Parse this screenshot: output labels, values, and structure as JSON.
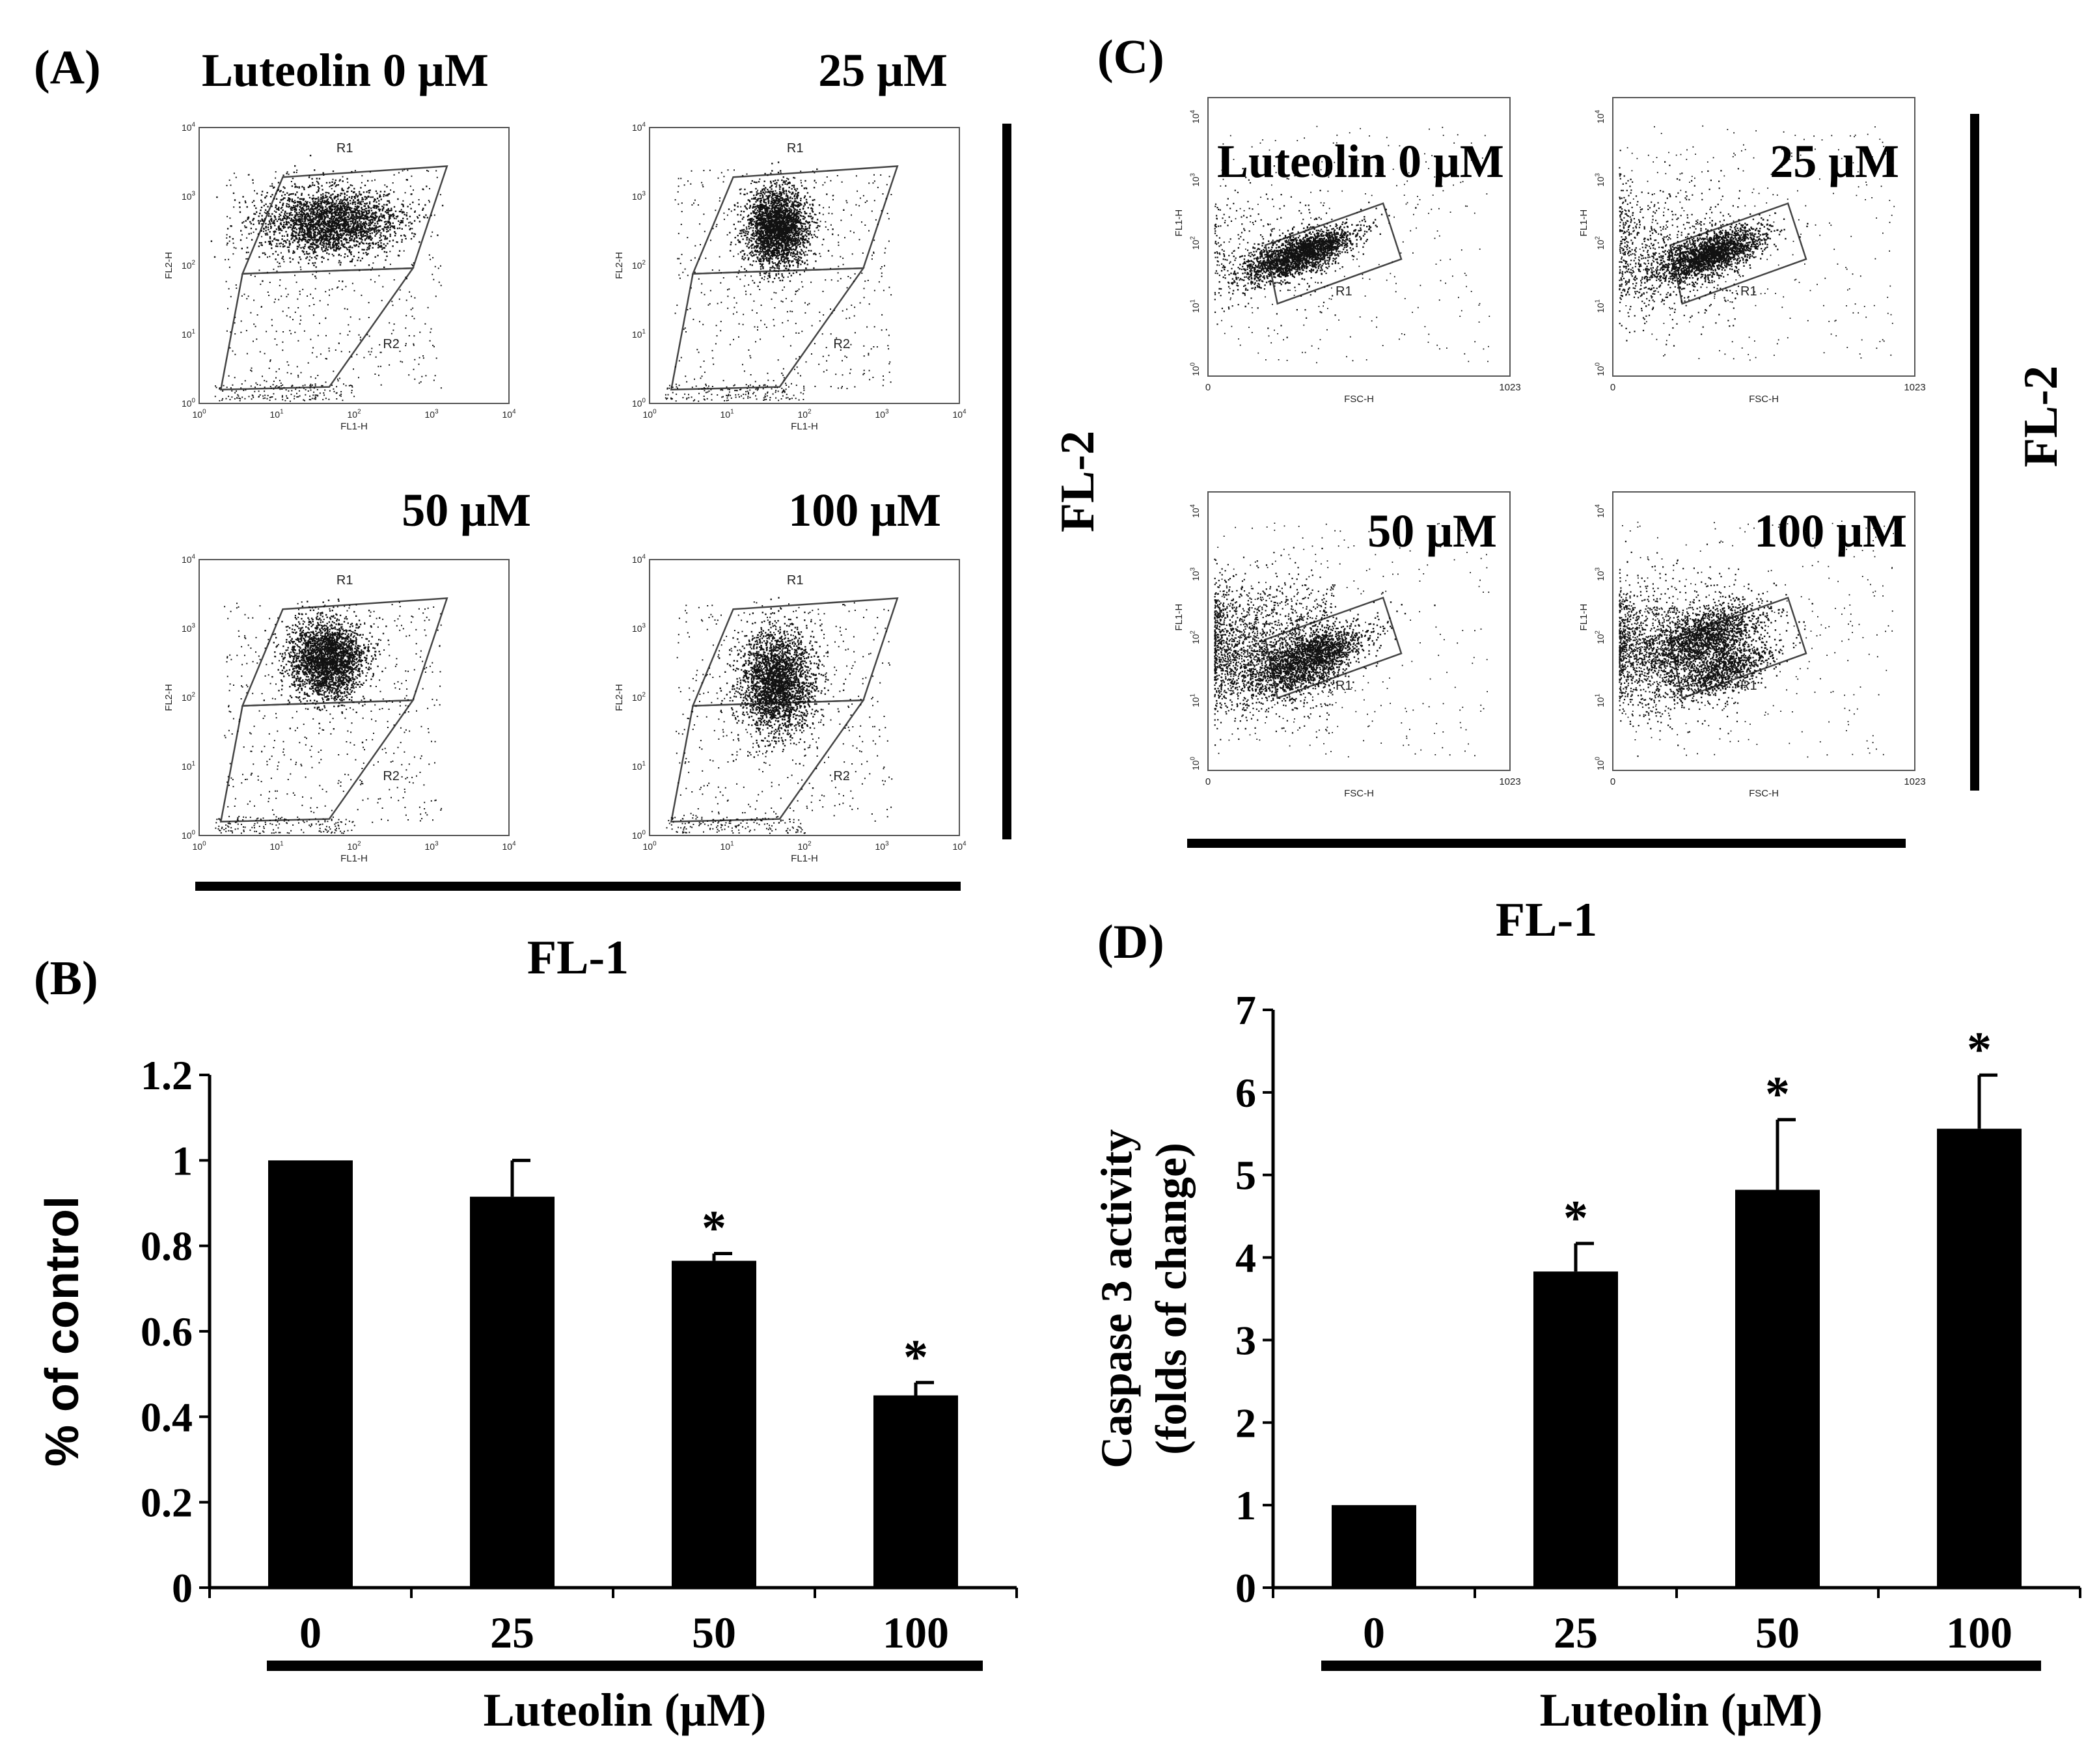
{
  "panel_labels": {
    "a": "(A)",
    "b": "(B)",
    "c": "(C)",
    "d": "(D)"
  },
  "panel_a": {
    "conditions": [
      "Luteolin 0 μM",
      "25 μM",
      "50 μM",
      "100 μM"
    ],
    "y_axis_label": "FL2-H",
    "x_axis_label": "FL1-H",
    "gate_labels": [
      "R1",
      "R2"
    ],
    "tick_exponents": [
      "0",
      "1",
      "2",
      "3",
      "4"
    ],
    "tick_base": "10",
    "group_x_label": "FL-1",
    "group_y_label": "FL-2"
  },
  "panel_c": {
    "conditions": [
      "Luteolin 0 μM",
      "25 μM",
      "50 μM",
      "100 μM"
    ],
    "y_axis_label": "FL1-H",
    "x_axis_label": "FSC-H",
    "gate_label": "R1",
    "x_ticks": [
      "0",
      "1023"
    ],
    "tick_exponents": [
      "0",
      "1",
      "2",
      "3",
      "4"
    ],
    "tick_base": "10",
    "group_x_label": "FL-1",
    "group_y_label": "FL-2"
  },
  "chart_data": [
    {
      "id": "B",
      "type": "bar",
      "categories": [
        "0",
        "25",
        "50",
        "100"
      ],
      "values": [
        1.0,
        0.915,
        0.765,
        0.45
      ],
      "errors": [
        0,
        0.085,
        0.017,
        0.03
      ],
      "significant": [
        false,
        false,
        true,
        true
      ],
      "significance_marker": "*",
      "ylabel": "% of control",
      "xlabel": "Luteolin (μM)",
      "ylim": [
        0,
        1.2
      ],
      "yticks": [
        "0",
        "0.2",
        "0.4",
        "0.6",
        "0.8",
        "1",
        "1.2"
      ],
      "color": "#000000"
    },
    {
      "id": "D",
      "type": "bar",
      "categories": [
        "0",
        "25",
        "50",
        "100"
      ],
      "values": [
        1.0,
        3.83,
        4.82,
        5.56
      ],
      "errors": [
        0,
        0.34,
        0.85,
        0.65
      ],
      "significant": [
        false,
        true,
        true,
        true
      ],
      "significance_marker": "*",
      "ylabel": [
        "Caspase 3 activity",
        "(folds of change)"
      ],
      "xlabel": "Luteolin (μM)",
      "ylim": [
        0,
        7
      ],
      "yticks": [
        "0",
        "1",
        "2",
        "3",
        "4",
        "5",
        "6",
        "7"
      ],
      "color": "#000000"
    }
  ]
}
